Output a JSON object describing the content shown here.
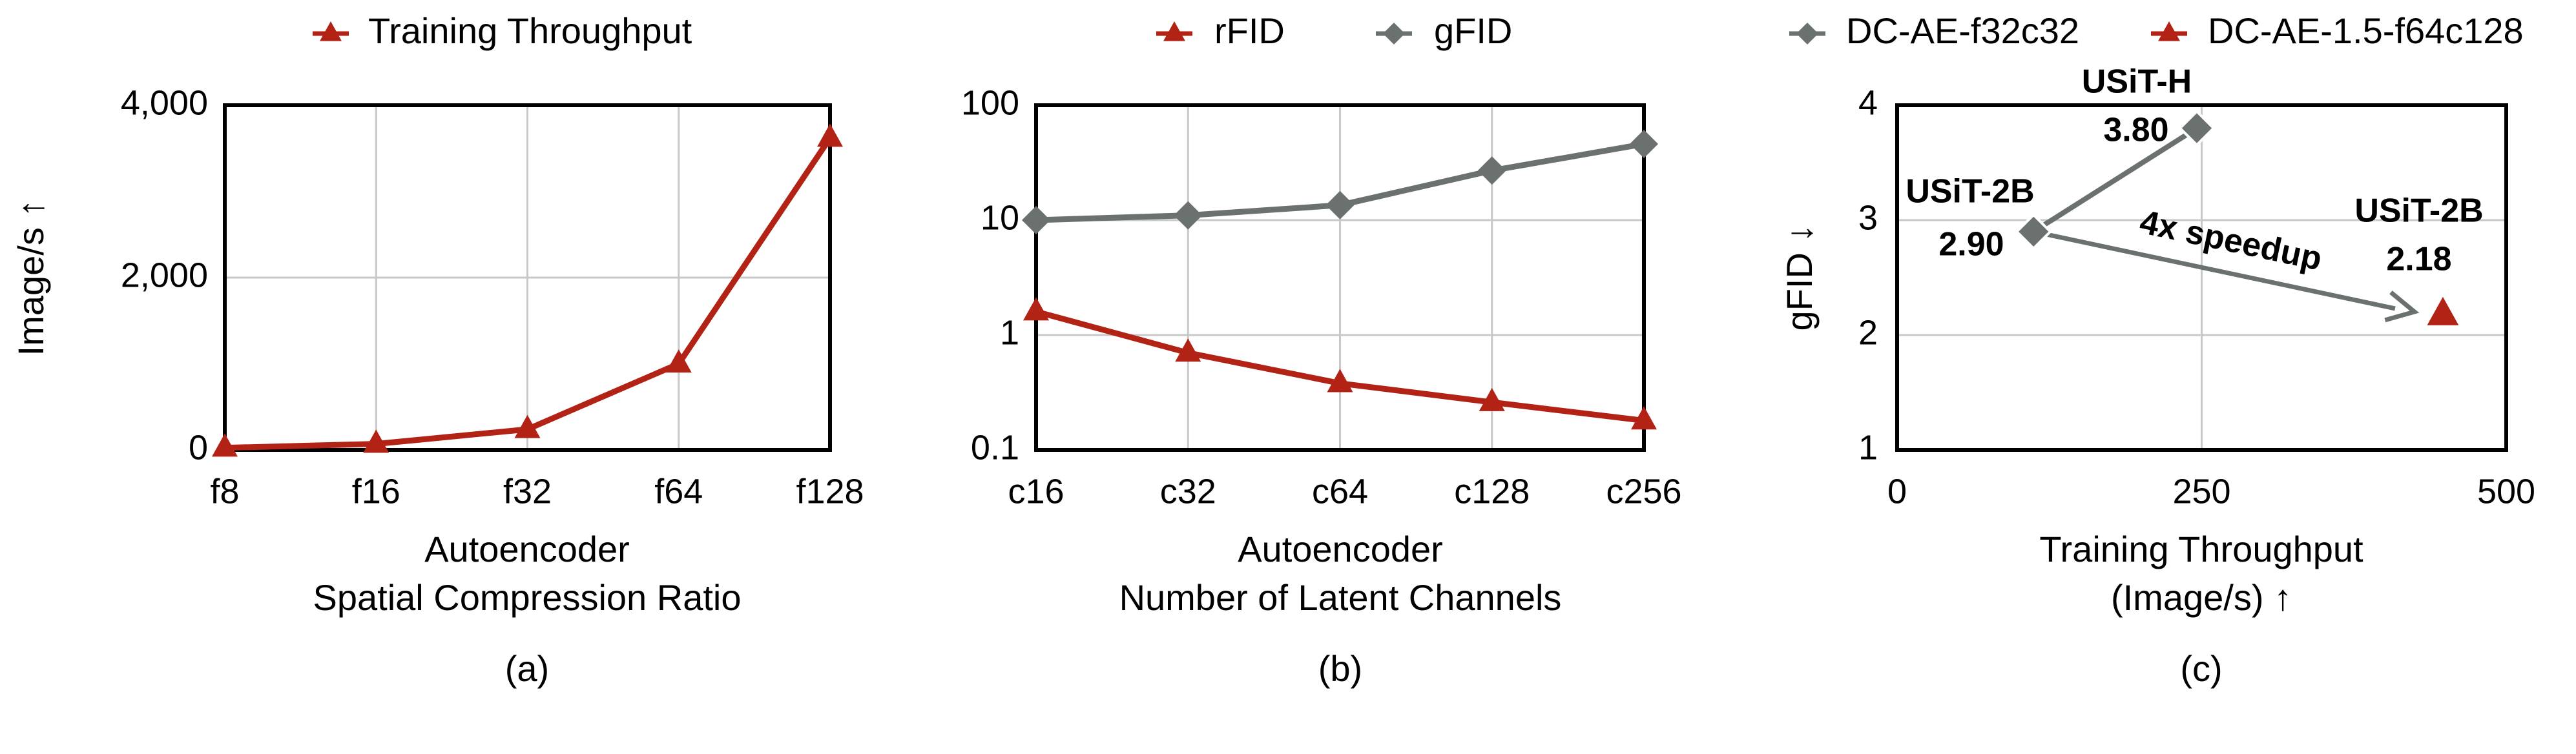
{
  "colors": {
    "red": "#b22316",
    "gray": "#6b716e",
    "grid": "#c8c8c8",
    "axis": "#000000"
  },
  "chart_data": [
    {
      "id": "a",
      "type": "line",
      "panel_label": "(a)",
      "legend": [
        {
          "name": "Training Throughput",
          "marker": "triangle",
          "color": "#b22316"
        }
      ],
      "categories": [
        "f8",
        "f16",
        "f32",
        "f64",
        "f128"
      ],
      "series": [
        {
          "name": "Training Throughput",
          "values": [
            25,
            70,
            240,
            1000,
            3620
          ],
          "color": "#b22316",
          "marker": "triangle"
        }
      ],
      "ylabel": "Image/s ↑",
      "xlabel": [
        "Autoencoder",
        "Spatial Compression Ratio"
      ],
      "ylim": [
        0,
        4000
      ],
      "yticks": [
        0,
        2000,
        4000
      ],
      "ytick_labels": [
        "0",
        "2,000",
        "4,000"
      ],
      "grid": true
    },
    {
      "id": "b",
      "type": "line",
      "panel_label": "(b)",
      "yscale": "log",
      "legend": [
        {
          "name": "rFID",
          "marker": "triangle",
          "color": "#b22316"
        },
        {
          "name": "gFID",
          "marker": "diamond",
          "color": "#6b716e"
        }
      ],
      "categories": [
        "c16",
        "c32",
        "c64",
        "c128",
        "c256"
      ],
      "series": [
        {
          "name": "rFID",
          "values": [
            1.6,
            0.7,
            0.38,
            0.26,
            0.18
          ],
          "color": "#b22316",
          "marker": "triangle"
        },
        {
          "name": "gFID",
          "values": [
            10,
            11,
            13.5,
            27,
            46
          ],
          "color": "#6b716e",
          "marker": "diamond"
        }
      ],
      "xlabel": [
        "Autoencoder",
        "Number of Latent Channels"
      ],
      "ylim": [
        0.1,
        100
      ],
      "yticks": [
        0.1,
        1,
        10,
        100
      ],
      "ytick_labels": [
        "0.1",
        "1",
        "10",
        "100"
      ],
      "grid": true
    },
    {
      "id": "c",
      "type": "scatter",
      "panel_label": "(c)",
      "legend": [
        {
          "name": "DC-AE-f32c32",
          "marker": "diamond",
          "color": "#6b716e"
        },
        {
          "name": "DC-AE-1.5-f64c128",
          "marker": "triangle",
          "color": "#b22316"
        }
      ],
      "series": [
        {
          "name": "DC-AE-f32c32",
          "color": "#6b716e",
          "marker": "diamond",
          "points": [
            {
              "x": 112,
              "y": 2.9,
              "model": "USiT-2B",
              "value": "2.90"
            },
            {
              "x": 246,
              "y": 3.8,
              "model": "USiT-H",
              "value": "3.80"
            }
          ]
        },
        {
          "name": "DC-AE-1.5-f64c128",
          "color": "#b22316",
          "marker": "triangle",
          "points": [
            {
              "x": 448,
              "y": 2.18,
              "model": "USiT-2B",
              "value": "2.18"
            }
          ]
        }
      ],
      "annotation": "4x speedup",
      "xlabel": [
        "Training Throughput",
        "(Image/s) ↑"
      ],
      "ylabel": "gFID ↓",
      "xlim": [
        0,
        500
      ],
      "ylim": [
        1,
        4
      ],
      "xticks": [
        0,
        250,
        500
      ],
      "xtick_labels": [
        "0",
        "250",
        "500"
      ],
      "yticks": [
        1,
        2,
        3,
        4
      ],
      "ytick_labels": [
        "1",
        "2",
        "3",
        "4"
      ],
      "grid": true
    }
  ]
}
